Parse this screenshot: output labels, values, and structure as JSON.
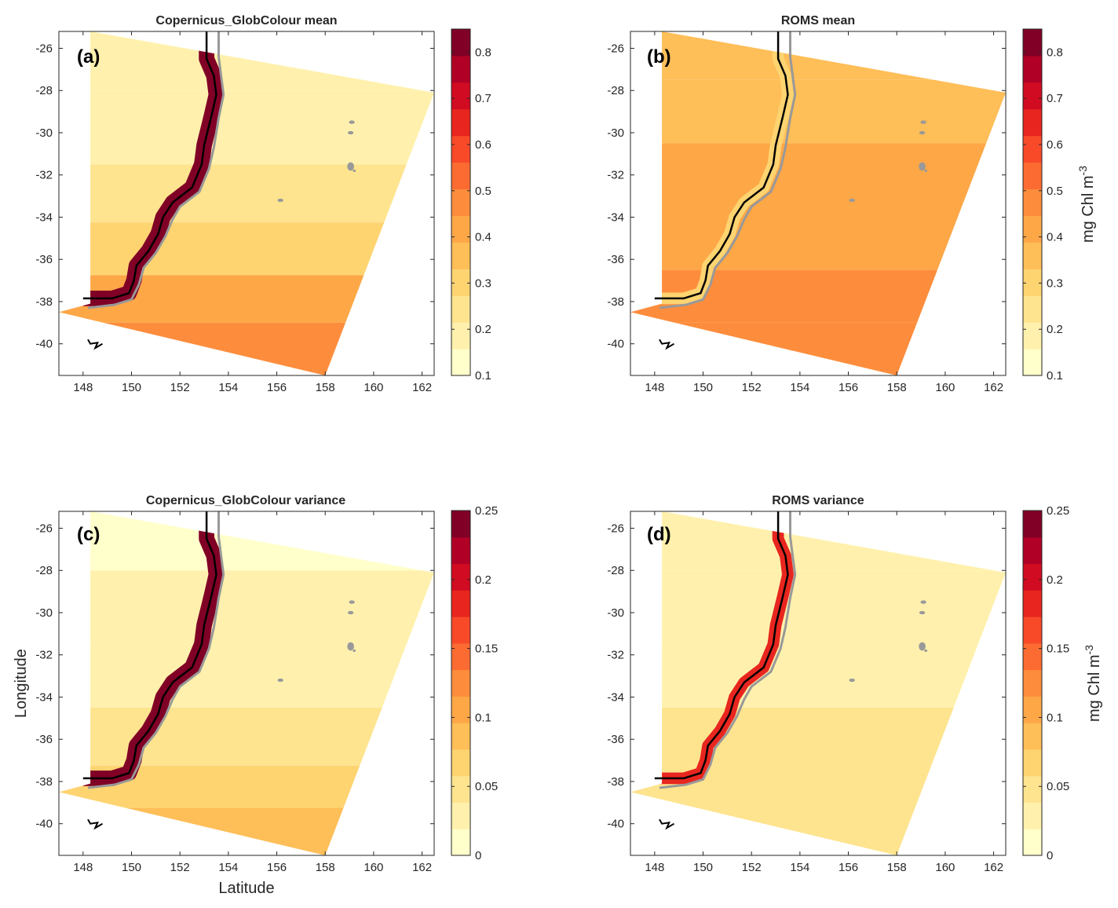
{
  "chart_data": [
    {
      "type": "heatmap",
      "panel": "(a)",
      "title": "Copernicus_GlobColour mean",
      "xlim": [
        147,
        162.5
      ],
      "ylim": [
        -41.5,
        -25.2
      ],
      "xticks": [
        "148",
        "150",
        "152",
        "154",
        "156",
        "158",
        "160",
        "162"
      ],
      "yticks": [
        "-26",
        "-28",
        "-30",
        "-32",
        "-34",
        "-36",
        "-38",
        "-40"
      ],
      "colorbar": {
        "range": [
          0.1,
          0.85
        ],
        "ticks": [
          "0.1",
          "0.2",
          "0.3",
          "0.4",
          "0.5",
          "0.6",
          "0.7",
          "0.8"
        ],
        "label": ""
      },
      "zones": [
        {
          "lat": -26,
          "value": 0.16
        },
        {
          "lat": -30,
          "value": 0.18
        },
        {
          "lat": -33,
          "value": 0.25
        },
        {
          "lat": -35.5,
          "value": 0.33
        },
        {
          "lat": -38,
          "value": 0.4
        },
        {
          "lat": -40,
          "value": 0.46
        }
      ],
      "coastal_band": {
        "value": 0.82,
        "width_deg": 0.4
      }
    },
    {
      "type": "heatmap",
      "panel": "(b)",
      "title": "ROMS mean",
      "xlim": [
        147,
        162.5
      ],
      "ylim": [
        -41.5,
        -25.2
      ],
      "xticks": [
        "148",
        "150",
        "152",
        "154",
        "156",
        "158",
        "160",
        "162"
      ],
      "yticks": [
        "-26",
        "-28",
        "-30",
        "-32",
        "-34",
        "-36",
        "-38",
        "-40"
      ],
      "colorbar": {
        "range": [
          0.1,
          0.85
        ],
        "ticks": [
          "0.1",
          "0.2",
          "0.3",
          "0.4",
          "0.5",
          "0.6",
          "0.7",
          "0.8"
        ],
        "label": "mg Chl m",
        "label_sup": "-3"
      },
      "zones": [
        {
          "lat": -26,
          "value": 0.37
        },
        {
          "lat": -29,
          "value": 0.36
        },
        {
          "lat": -32,
          "value": 0.4
        },
        {
          "lat": -35,
          "value": 0.44
        },
        {
          "lat": -38,
          "value": 0.45
        },
        {
          "lat": -40,
          "value": 0.45
        }
      ],
      "coastal_band": {
        "value": 0.3,
        "width_deg": 0.3
      }
    },
    {
      "type": "heatmap",
      "panel": "(c)",
      "title": "Copernicus_GlobColour variance",
      "xlabel": "Latitude",
      "ylabel": "Longitude",
      "xlim": [
        147,
        162.5
      ],
      "ylim": [
        -41.5,
        -25.2
      ],
      "xticks": [
        "148",
        "150",
        "152",
        "154",
        "156",
        "158",
        "160",
        "162"
      ],
      "yticks": [
        "-26",
        "-28",
        "-30",
        "-32",
        "-34",
        "-36",
        "-38",
        "-40"
      ],
      "colorbar": {
        "range": [
          0,
          0.25
        ],
        "ticks": [
          "0",
          "0.05",
          "0.1",
          "0.15",
          "0.2",
          "0.25"
        ],
        "label": ""
      },
      "zones": [
        {
          "lat": -26,
          "value": 0.01
        },
        {
          "lat": -30,
          "value": 0.02
        },
        {
          "lat": -33,
          "value": 0.03
        },
        {
          "lat": -36,
          "value": 0.045
        },
        {
          "lat": -38.5,
          "value": 0.07
        },
        {
          "lat": -40,
          "value": 0.08
        }
      ],
      "coastal_band": {
        "value": 0.24,
        "width_deg": 0.4
      }
    },
    {
      "type": "heatmap",
      "panel": "(d)",
      "title": "ROMS variance",
      "xlim": [
        147,
        162.5
      ],
      "ylim": [
        -41.5,
        -25.2
      ],
      "xticks": [
        "148",
        "150",
        "152",
        "154",
        "156",
        "158",
        "160",
        "162"
      ],
      "yticks": [
        "-26",
        "-28",
        "-30",
        "-32",
        "-34",
        "-36",
        "-38",
        "-40"
      ],
      "colorbar": {
        "range": [
          0,
          0.25
        ],
        "ticks": [
          "0",
          "0.05",
          "0.1",
          "0.15",
          "0.2",
          "0.25"
        ],
        "label": "mg Chl m",
        "label_sup": "-3"
      },
      "zones": [
        {
          "lat": -26,
          "value": 0.02
        },
        {
          "lat": -30,
          "value": 0.03
        },
        {
          "lat": -33,
          "value": 0.035
        },
        {
          "lat": -36,
          "value": 0.04
        },
        {
          "lat": -38.5,
          "value": 0.045
        },
        {
          "lat": -40,
          "value": 0.04
        }
      ],
      "coastal_band": {
        "value": 0.18,
        "width_deg": 0.3
      }
    }
  ],
  "colors": {
    "colormap": [
      "#ffffcc",
      "#fff1ad",
      "#fee48f",
      "#fed471",
      "#febe58",
      "#fda747",
      "#fd8d3c",
      "#fc6c32",
      "#f84a29",
      "#e8261f",
      "#d10b21",
      "#b10026",
      "#800026"
    ],
    "coastline": "#000000",
    "shelf_contour": "#999999",
    "axes": "#262626"
  }
}
